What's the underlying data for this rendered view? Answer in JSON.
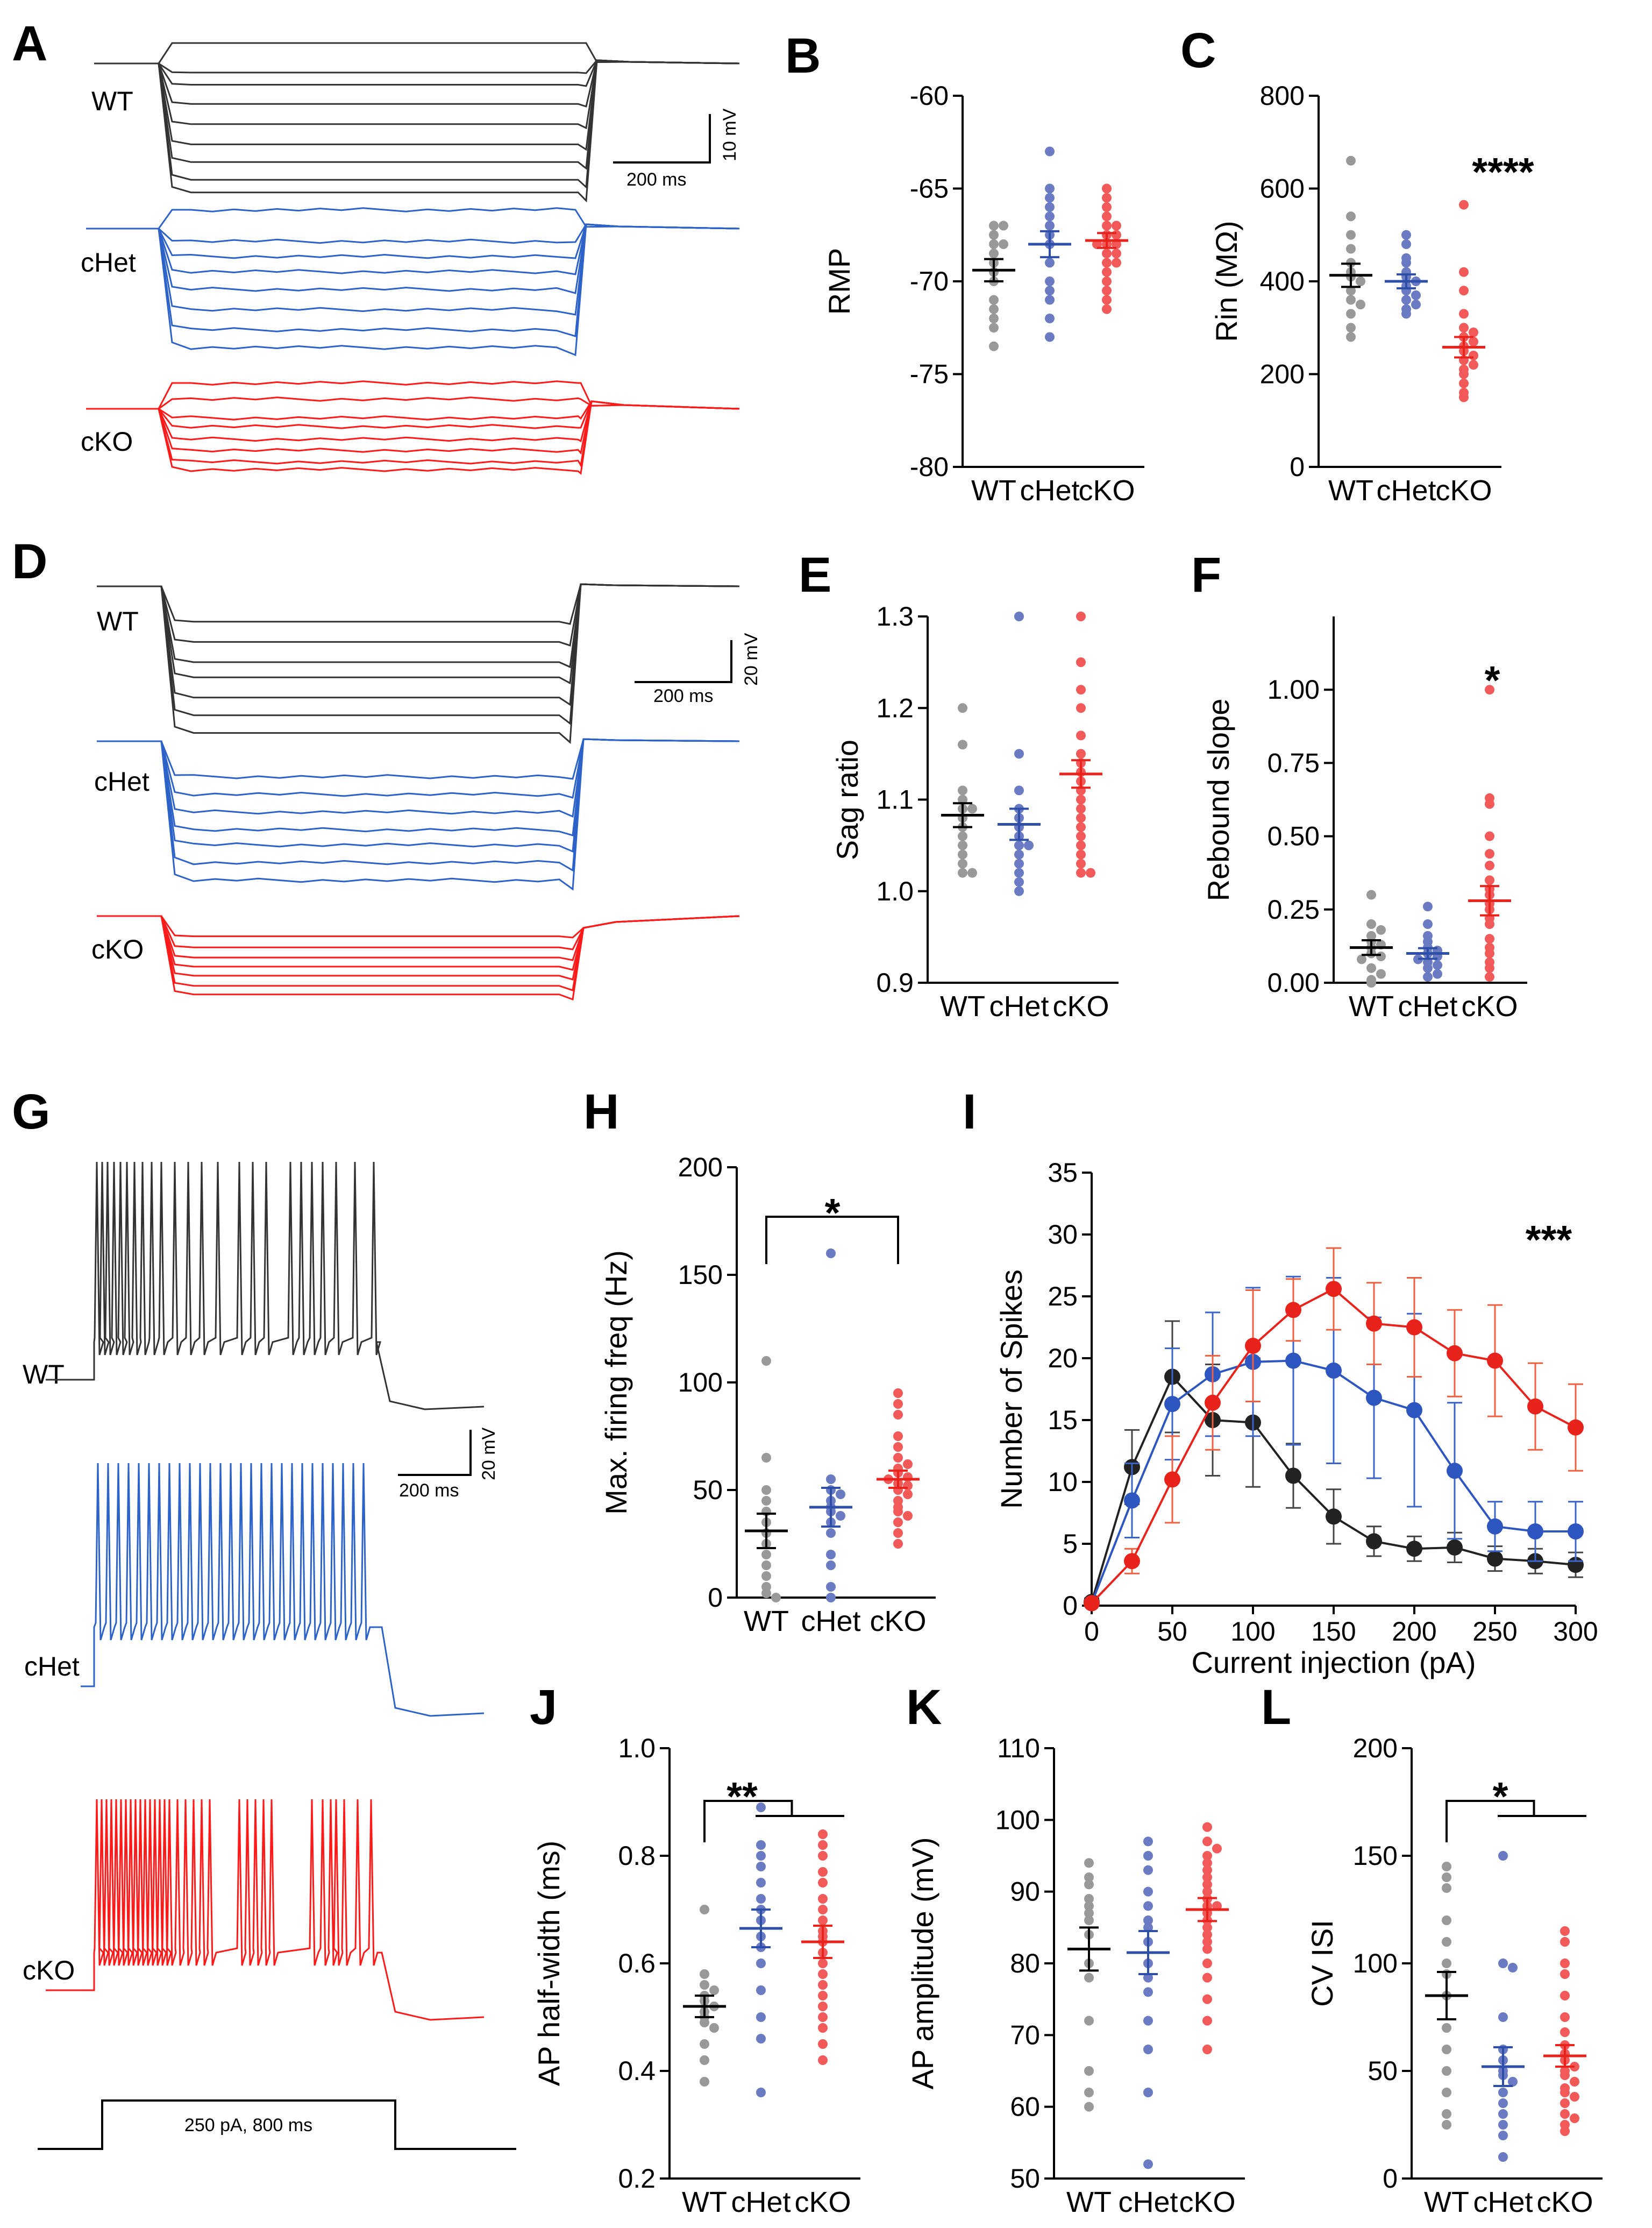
{
  "colors": {
    "WT": "#999999",
    "cHet": "#6a7bc4",
    "cKO": "#f25a5a",
    "WT_mean": "#000000",
    "cHet_mean": "#2e4fa8",
    "cKO_mean": "#e8231c",
    "trace_WT": "#333333",
    "trace_cHet": "#2d63c8",
    "trace_cKO": "#ff1a1a"
  },
  "traces": {
    "A": {
      "labels": [
        "WT",
        "cHet",
        "cKO"
      ],
      "scale_time": "200 ms",
      "scale_voltage": "10 mV"
    },
    "D": {
      "labels": [
        "WT",
        "cHet",
        "cKO"
      ],
      "scale_time": "200 ms",
      "scale_voltage": "20 mV"
    },
    "G": {
      "labels": [
        "WT",
        "cHet",
        "cKO"
      ],
      "scale_time": "200 ms",
      "scale_voltage": "20 mV",
      "stimulus": "250 pA, 800 ms"
    }
  },
  "chart_data": [
    {
      "id": "B",
      "type": "scatter",
      "title": "B",
      "ylabel": "RMP",
      "categories": [
        "WT",
        "cHet",
        "cKO"
      ],
      "ylim": [
        -80,
        -60
      ],
      "yticks": [
        -60,
        -65,
        -70,
        -75,
        -80
      ],
      "series": [
        {
          "name": "WT",
          "values": [
            -67,
            -67,
            -67.5,
            -68,
            -68.5,
            -68,
            -69,
            -69.5,
            -70,
            -71,
            -71.5,
            -72,
            -72.5,
            -73.5
          ],
          "mean": -69.4,
          "sem": 0.6
        },
        {
          "name": "cHet",
          "values": [
            -63,
            -65,
            -65.5,
            -66,
            -66.5,
            -67,
            -67.5,
            -68,
            -69,
            -70,
            -70.5,
            -71,
            -72,
            -73
          ],
          "mean": -68.0,
          "sem": 0.7
        },
        {
          "name": "cKO",
          "values": [
            -65,
            -65.5,
            -66,
            -66.5,
            -67,
            -67,
            -67.5,
            -67.5,
            -68,
            -68,
            -68,
            -68.5,
            -68.5,
            -69,
            -69,
            -69.5,
            -70,
            -70.5,
            -71,
            -71.5
          ],
          "mean": -67.8,
          "sem": 0.4
        }
      ],
      "significance": ""
    },
    {
      "id": "C",
      "type": "scatter",
      "title": "C",
      "ylabel": "Rin (MΩ)",
      "categories": [
        "WT",
        "cHet",
        "cKO"
      ],
      "ylim": [
        0,
        800
      ],
      "yticks": [
        0,
        200,
        400,
        600,
        800
      ],
      "series": [
        {
          "name": "WT",
          "values": [
            660,
            540,
            500,
            470,
            440,
            420,
            410,
            400,
            380,
            360,
            350,
            330,
            300,
            280
          ],
          "mean": 413,
          "sem": 25
        },
        {
          "name": "cHet",
          "values": [
            500,
            480,
            450,
            440,
            420,
            410,
            400,
            390,
            380,
            370,
            360,
            350,
            340,
            330
          ],
          "mean": 400,
          "sem": 15
        },
        {
          "name": "cKO",
          "values": [
            565,
            420,
            380,
            330,
            300,
            290,
            280,
            270,
            260,
            250,
            240,
            230,
            220,
            210,
            200,
            180,
            160,
            150
          ],
          "mean": 258,
          "sem": 22
        }
      ],
      "significance": "****"
    },
    {
      "id": "E",
      "type": "scatter",
      "title": "E",
      "ylabel": "Sag ratio",
      "categories": [
        "WT",
        "cHet",
        "cKO"
      ],
      "ylim": [
        0.9,
        1.3
      ],
      "yticks": [
        0.9,
        1.0,
        1.1,
        1.2,
        1.3
      ],
      "series": [
        {
          "name": "WT",
          "values": [
            1.2,
            1.16,
            1.11,
            1.1,
            1.09,
            1.09,
            1.08,
            1.07,
            1.06,
            1.05,
            1.04,
            1.03,
            1.02,
            1.02
          ],
          "mean": 1.083,
          "sem": 0.013
        },
        {
          "name": "cHet",
          "values": [
            1.3,
            1.15,
            1.11,
            1.09,
            1.08,
            1.07,
            1.06,
            1.05,
            1.05,
            1.04,
            1.03,
            1.02,
            1.01,
            1.0
          ],
          "mean": 1.073,
          "sem": 0.017
        },
        {
          "name": "cKO",
          "values": [
            1.3,
            1.25,
            1.22,
            1.2,
            1.17,
            1.15,
            1.14,
            1.13,
            1.12,
            1.11,
            1.1,
            1.09,
            1.08,
            1.07,
            1.06,
            1.05,
            1.04,
            1.03,
            1.02,
            1.02
          ],
          "mean": 1.128,
          "sem": 0.015
        }
      ],
      "significance": ""
    },
    {
      "id": "F",
      "type": "scatter",
      "title": "F",
      "ylabel": "Rebound slope",
      "categories": [
        "WT",
        "cHet",
        "cKO"
      ],
      "ylim": [
        0,
        1.25
      ],
      "yticks": [
        0.0,
        0.25,
        0.5,
        0.75,
        1.0
      ],
      "series": [
        {
          "name": "WT",
          "values": [
            0.3,
            0.2,
            0.18,
            0.16,
            0.14,
            0.13,
            0.12,
            0.1,
            0.09,
            0.08,
            0.05,
            0.03,
            0.01,
            0.0
          ],
          "mean": 0.12,
          "sem": 0.025
        },
        {
          "name": "cHet",
          "values": [
            0.26,
            0.2,
            0.16,
            0.14,
            0.12,
            0.11,
            0.1,
            0.09,
            0.08,
            0.07,
            0.06,
            0.05,
            0.03,
            0.02
          ],
          "mean": 0.1,
          "sem": 0.018
        },
        {
          "name": "cKO",
          "values": [
            1.0,
            0.63,
            0.61,
            0.5,
            0.44,
            0.4,
            0.35,
            0.32,
            0.3,
            0.27,
            0.25,
            0.22,
            0.2,
            0.15,
            0.12,
            0.1,
            0.07,
            0.05,
            0.02
          ],
          "mean": 0.28,
          "sem": 0.05
        }
      ],
      "significance": "*"
    },
    {
      "id": "H",
      "type": "scatter",
      "title": "H",
      "ylabel": "Max. firing freq (Hz)",
      "categories": [
        "WT",
        "cHet",
        "cKO"
      ],
      "ylim": [
        0,
        200
      ],
      "yticks": [
        0,
        50,
        100,
        150,
        200
      ],
      "series": [
        {
          "name": "WT",
          "values": [
            110,
            65,
            50,
            45,
            40,
            35,
            30,
            25,
            20,
            15,
            10,
            5,
            2,
            0
          ],
          "mean": 31,
          "sem": 8
        },
        {
          "name": "cHet",
          "values": [
            160,
            55,
            50,
            48,
            45,
            42,
            40,
            38,
            35,
            30,
            20,
            15,
            5,
            0
          ],
          "mean": 42,
          "sem": 9
        },
        {
          "name": "cKO",
          "values": [
            95,
            90,
            85,
            75,
            70,
            65,
            62,
            60,
            58,
            56,
            55,
            53,
            52,
            50,
            48,
            45,
            42,
            40,
            38,
            35,
            30,
            25
          ],
          "mean": 55,
          "sem": 4
        }
      ],
      "significance": "*"
    },
    {
      "id": "I",
      "type": "line",
      "title": "I",
      "xlabel": "Current injection (pA)",
      "ylabel": "Number of Spikes",
      "x": [
        0,
        25,
        50,
        75,
        100,
        125,
        150,
        175,
        200,
        225,
        250,
        275,
        300
      ],
      "xlim": [
        0,
        300
      ],
      "ylim": [
        0,
        35
      ],
      "series": [
        {
          "name": "WT",
          "values": [
            0.3,
            11.2,
            18.5,
            15.0,
            14.8,
            10.5,
            7.2,
            5.2,
            4.6,
            4.7,
            3.8,
            3.6,
            3.3
          ],
          "err": [
            0.3,
            3.0,
            4.5,
            4.5,
            5.2,
            2.6,
            2.2,
            1.2,
            1.0,
            1.2,
            1.0,
            1.0,
            1.0
          ]
        },
        {
          "name": "cHet",
          "values": [
            0.2,
            8.5,
            16.3,
            18.7,
            19.7,
            19.8,
            19.0,
            16.8,
            15.8,
            10.9,
            6.4,
            6.0,
            6.0
          ],
          "err": [
            0.2,
            3.0,
            4.5,
            5.0,
            6.0,
            6.8,
            7.5,
            6.5,
            7.8,
            5.5,
            2.0,
            2.4,
            2.4
          ]
        },
        {
          "name": "cKO",
          "values": [
            0.2,
            3.6,
            10.2,
            16.4,
            21.0,
            23.9,
            25.6,
            22.8,
            22.5,
            20.4,
            19.8,
            16.1,
            14.4
          ],
          "err": [
            0.2,
            1.0,
            3.5,
            3.8,
            4.5,
            2.5,
            3.3,
            3.3,
            4.0,
            3.5,
            4.5,
            3.5,
            3.5
          ]
        }
      ],
      "significance": "***"
    },
    {
      "id": "J",
      "type": "scatter",
      "title": "J",
      "ylabel": "AP half-width (ms)",
      "categories": [
        "WT",
        "cHet",
        "cKO"
      ],
      "ylim": [
        0.2,
        1.0
      ],
      "yticks": [
        0.2,
        0.4,
        0.6,
        0.8,
        1.0
      ],
      "series": [
        {
          "name": "WT",
          "values": [
            0.7,
            0.58,
            0.56,
            0.55,
            0.54,
            0.53,
            0.52,
            0.51,
            0.5,
            0.49,
            0.48,
            0.45,
            0.42,
            0.38
          ],
          "mean": 0.52,
          "sem": 0.02
        },
        {
          "name": "cHet",
          "values": [
            0.89,
            0.82,
            0.8,
            0.78,
            0.75,
            0.72,
            0.7,
            0.68,
            0.65,
            0.63,
            0.6,
            0.55,
            0.5,
            0.46,
            0.36
          ],
          "mean": 0.665,
          "sem": 0.035
        },
        {
          "name": "cKO",
          "values": [
            0.84,
            0.82,
            0.8,
            0.77,
            0.75,
            0.72,
            0.7,
            0.68,
            0.66,
            0.65,
            0.64,
            0.62,
            0.6,
            0.58,
            0.56,
            0.54,
            0.52,
            0.5,
            0.48,
            0.45,
            0.42
          ],
          "mean": 0.64,
          "sem": 0.03
        }
      ],
      "significance": "**"
    },
    {
      "id": "K",
      "type": "scatter",
      "title": "K",
      "ylabel": "AP amplitude (mV)",
      "categories": [
        "WT",
        "cHet",
        "cKO"
      ],
      "ylim": [
        50,
        110
      ],
      "yticks": [
        50,
        60,
        70,
        80,
        90,
        100,
        110
      ],
      "series": [
        {
          "name": "WT",
          "values": [
            94,
            92,
            91,
            89,
            88,
            87,
            86,
            84,
            80,
            78,
            72,
            65,
            62,
            60
          ],
          "mean": 82,
          "sem": 3
        },
        {
          "name": "cHet",
          "values": [
            97,
            95,
            93,
            90,
            88,
            86,
            85,
            83,
            80,
            78,
            76,
            72,
            68,
            62,
            52
          ],
          "mean": 81.5,
          "sem": 3
        },
        {
          "name": "cKO",
          "values": [
            99,
            97,
            96,
            95,
            94,
            93,
            92,
            91,
            90,
            89,
            88,
            88,
            87,
            86,
            85,
            84,
            83,
            82,
            80,
            78,
            75,
            72,
            68
          ],
          "mean": 87.5,
          "sem": 1.6
        }
      ],
      "significance": ""
    },
    {
      "id": "L",
      "type": "scatter",
      "title": "L",
      "ylabel": "CV ISI",
      "categories": [
        "WT",
        "cHet",
        "cKO"
      ],
      "ylim": [
        0,
        200
      ],
      "yticks": [
        0,
        50,
        100,
        150,
        200
      ],
      "series": [
        {
          "name": "WT",
          "values": [
            145,
            140,
            135,
            120,
            110,
            100,
            95,
            85,
            70,
            60,
            50,
            40,
            30,
            25
          ],
          "mean": 85,
          "sem": 11
        },
        {
          "name": "cHet",
          "values": [
            150,
            100,
            98,
            75,
            60,
            55,
            50,
            48,
            45,
            40,
            35,
            30,
            25,
            20,
            10
          ],
          "mean": 52,
          "sem": 9
        },
        {
          "name": "cKO",
          "values": [
            115,
            110,
            100,
            95,
            85,
            75,
            68,
            62,
            58,
            55,
            52,
            50,
            48,
            45,
            42,
            40,
            38,
            35,
            30,
            28,
            25,
            22
          ],
          "mean": 57,
          "sem": 5
        }
      ],
      "significance": "*"
    }
  ],
  "tick_format": {
    "B": "int",
    "C": "int",
    "E": "fixed1",
    "F": "fixed2",
    "H": "int",
    "J": "fixed1",
    "K": "int",
    "L": "int"
  },
  "i_axis": {
    "yticks": [
      0,
      5,
      10,
      15,
      20,
      25,
      30,
      35
    ],
    "xticks": [
      0,
      50,
      100,
      150,
      200,
      250,
      300
    ]
  }
}
